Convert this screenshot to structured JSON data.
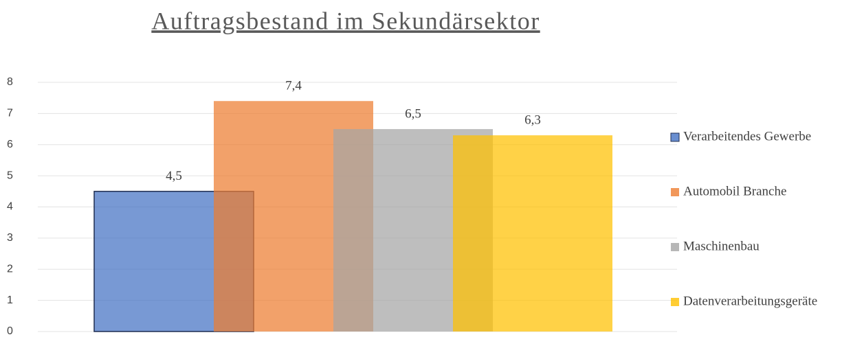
{
  "chart_data": {
    "type": "bar",
    "title": "Auftragsbestand im Sekundärsektor",
    "series": [
      {
        "name": "Verarbeitendes Gewerbe",
        "color": "#4472c4",
        "values": [
          4.5
        ],
        "value_labels": [
          "4,5"
        ]
      },
      {
        "name": "Automobil Branche",
        "color": "#ed7d31",
        "values": [
          7.4
        ],
        "value_labels": [
          "7,4"
        ]
      },
      {
        "name": "Maschinenbau",
        "color": "#a5a5a5",
        "values": [
          6.5
        ],
        "value_labels": [
          "6,5"
        ]
      },
      {
        "name": "Datenverarbeitungsgeräte",
        "color": "#ffc000",
        "values": [
          6.3
        ],
        "value_labels": [
          "6,3"
        ]
      }
    ],
    "ylim": [
      0,
      8
    ],
    "yticks": [
      0,
      1,
      2,
      3,
      4,
      5,
      6,
      7,
      8
    ],
    "grid": true,
    "legend": "right"
  }
}
